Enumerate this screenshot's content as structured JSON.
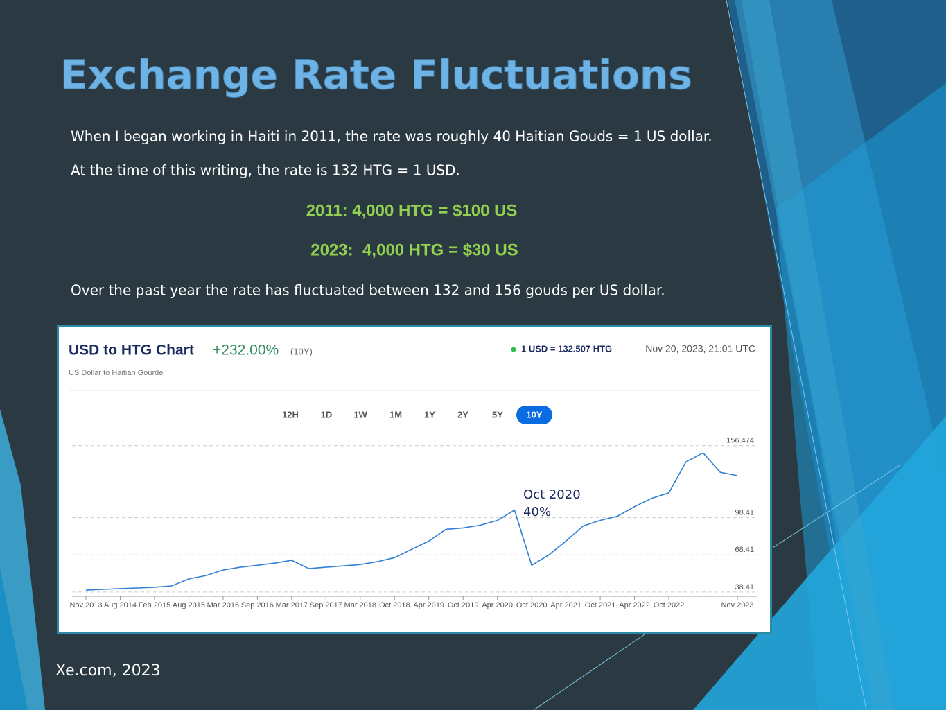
{
  "slide": {
    "title": "Exchange Rate Fluctuations",
    "paragraphs": [
      "When I began working in Haiti in 2011, the rate was roughly 40 Haitian Gouds = 1 US dollar.",
      "At the time of this writing, the rate is 132 HTG = 1 USD."
    ],
    "highlights": [
      "2011: 4,000 HTG = $100 US",
      "2023:  4,000 HTG = $30 US"
    ],
    "note": "Over the past year the rate has fluctuated between 132 and 156 gouds per US dollar.",
    "source": "Xe.com, 2023"
  },
  "chart_data": {
    "type": "line",
    "title": "USD to HTG Chart",
    "change": "+232.00%",
    "period": "(10Y)",
    "subtitle": "US Dollar to Haitian Gourde",
    "rate": "1 USD = 132.507 HTG",
    "timestamp": "Nov 20, 2023, 21:01 UTC",
    "range_buttons": [
      "12H",
      "1D",
      "1W",
      "1M",
      "1Y",
      "2Y",
      "5Y",
      "10Y"
    ],
    "annotations": [
      "Oct 2020",
      "40%"
    ],
    "categories": [
      "Nov 2013",
      null,
      "Aug 2014",
      null,
      "Feb 2015",
      null,
      "Aug 2015",
      null,
      "Mar 2016",
      null,
      "Sep 2016",
      null,
      "Mar 2017",
      null,
      "Sep 2017",
      null,
      "Mar 2018",
      null,
      "Oct 2018",
      null,
      "Apr 2019",
      null,
      "Oct 2019",
      null,
      "Apr 2020",
      null,
      "Oct 2020",
      null,
      "Apr 2021",
      null,
      "Oct 2021",
      null,
      "Apr 2022",
      null,
      "Oct 2022",
      null,
      null,
      null,
      "Nov 2023"
    ],
    "values": [
      40,
      40.6,
      41.2,
      41.7,
      42.3,
      43.4,
      49,
      51.7,
      56.2,
      58.4,
      60,
      61.7,
      64,
      57.3,
      58.4,
      59.5,
      60.6,
      62.9,
      66.2,
      72.9,
      79.5,
      89,
      90.1,
      92.3,
      96.2,
      104.5,
      60,
      68.4,
      79.5,
      91.7,
      96.2,
      99.5,
      107.3,
      114,
      118.4,
      143.4,
      150.6,
      135,
      132.3
    ],
    "color": "#2f7fd3",
    "ylim": [
      35,
      158
    ],
    "yticks": [
      38.41,
      68.41,
      98.41,
      156.474
    ],
    "grid": true
  }
}
